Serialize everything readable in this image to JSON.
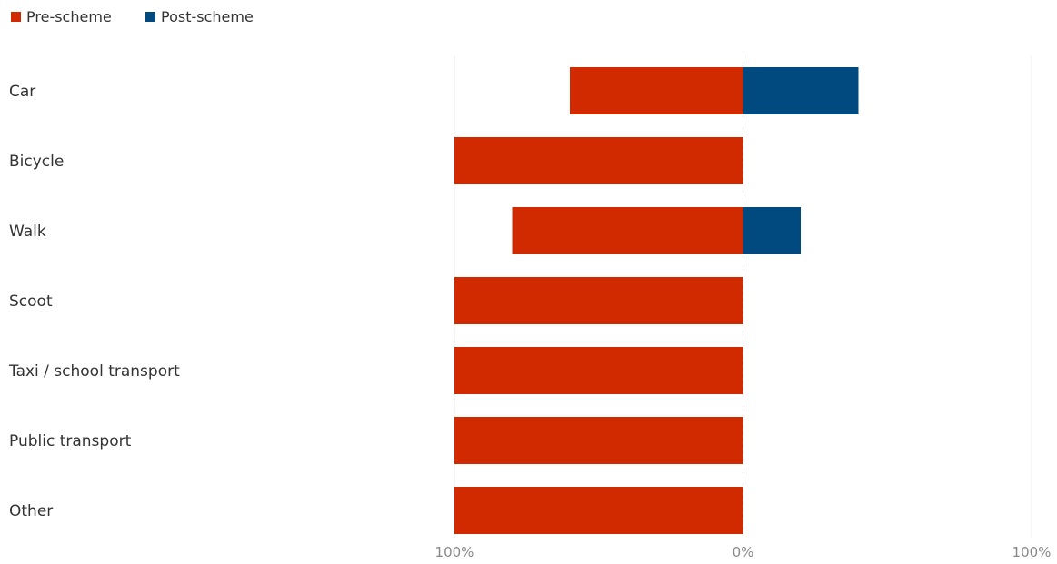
{
  "chart_data": {
    "type": "bar",
    "orientation": "horizontal",
    "diverging": true,
    "categories": [
      "Car",
      "Bicycle",
      "Walk",
      "Scoot",
      "Taxi / school transport",
      "Public transport",
      "Other"
    ],
    "series": [
      {
        "name": "Pre-scheme",
        "color": "#d12a00",
        "direction": "left",
        "values": [
          60,
          100,
          80,
          100,
          100,
          100,
          100
        ]
      },
      {
        "name": "Post-scheme",
        "color": "#004a80",
        "direction": "right",
        "values": [
          40,
          0,
          20,
          0,
          0,
          0,
          0
        ]
      }
    ],
    "xlim": [
      -100,
      100
    ],
    "x_ticks": [
      {
        "value": -100,
        "label": "100%"
      },
      {
        "value": 0,
        "label": "0%"
      },
      {
        "value": 100,
        "label": "100%"
      }
    ],
    "title": "",
    "xlabel": "",
    "ylabel": "",
    "legend": "top-left",
    "grid": true
  }
}
